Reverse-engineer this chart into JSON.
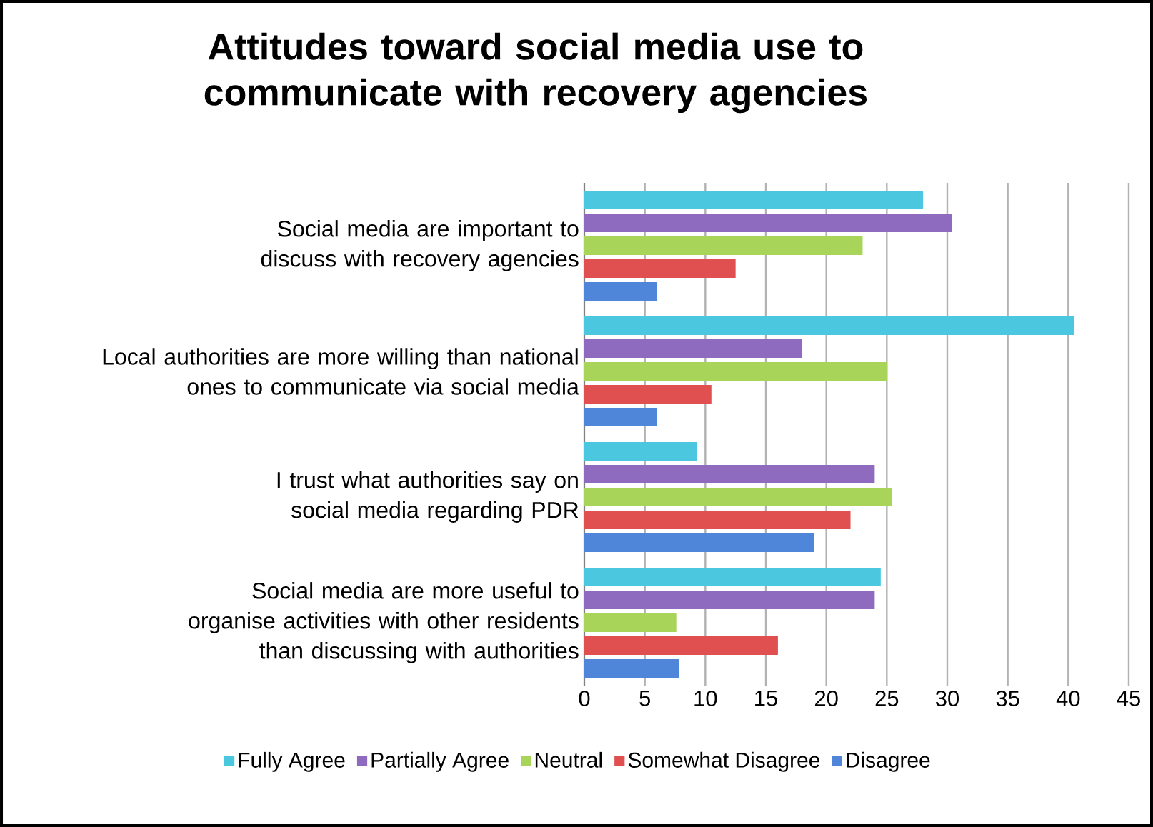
{
  "chart_data": {
    "type": "bar",
    "orientation": "horizontal",
    "title": "Attitudes toward social media use to communicate with recovery agencies",
    "categories": [
      "Social media are important to discuss with recovery agencies",
      "Local authorities are more willing than national ones to communicate via social media",
      "I trust what authorities say on social media regarding PDR",
      "Social media are more useful to organise activities with other residents than discussing with authorities"
    ],
    "series": [
      {
        "name": "Fully Agree",
        "color": "#4bc8e0",
        "values": [
          28.0,
          40.5,
          9.3,
          24.5
        ]
      },
      {
        "name": "Partially Agree",
        "color": "#8e6bbf",
        "values": [
          30.4,
          18.0,
          24.0,
          24.0
        ]
      },
      {
        "name": "Neutral",
        "color": "#a8d45a",
        "values": [
          23.0,
          25.0,
          25.4,
          7.6
        ]
      },
      {
        "name": "Somewhat Disagree",
        "color": "#e05050",
        "values": [
          12.5,
          10.5,
          22.0,
          16.0
        ]
      },
      {
        "name": "Disagree",
        "color": "#4f86d9",
        "values": [
          6.0,
          6.0,
          19.0,
          7.8
        ]
      }
    ],
    "xlim": [
      0,
      45
    ],
    "xticks": [
      0,
      5,
      10,
      15,
      20,
      25,
      30,
      35,
      40,
      45
    ],
    "grid": "x",
    "legend": "bottom"
  }
}
